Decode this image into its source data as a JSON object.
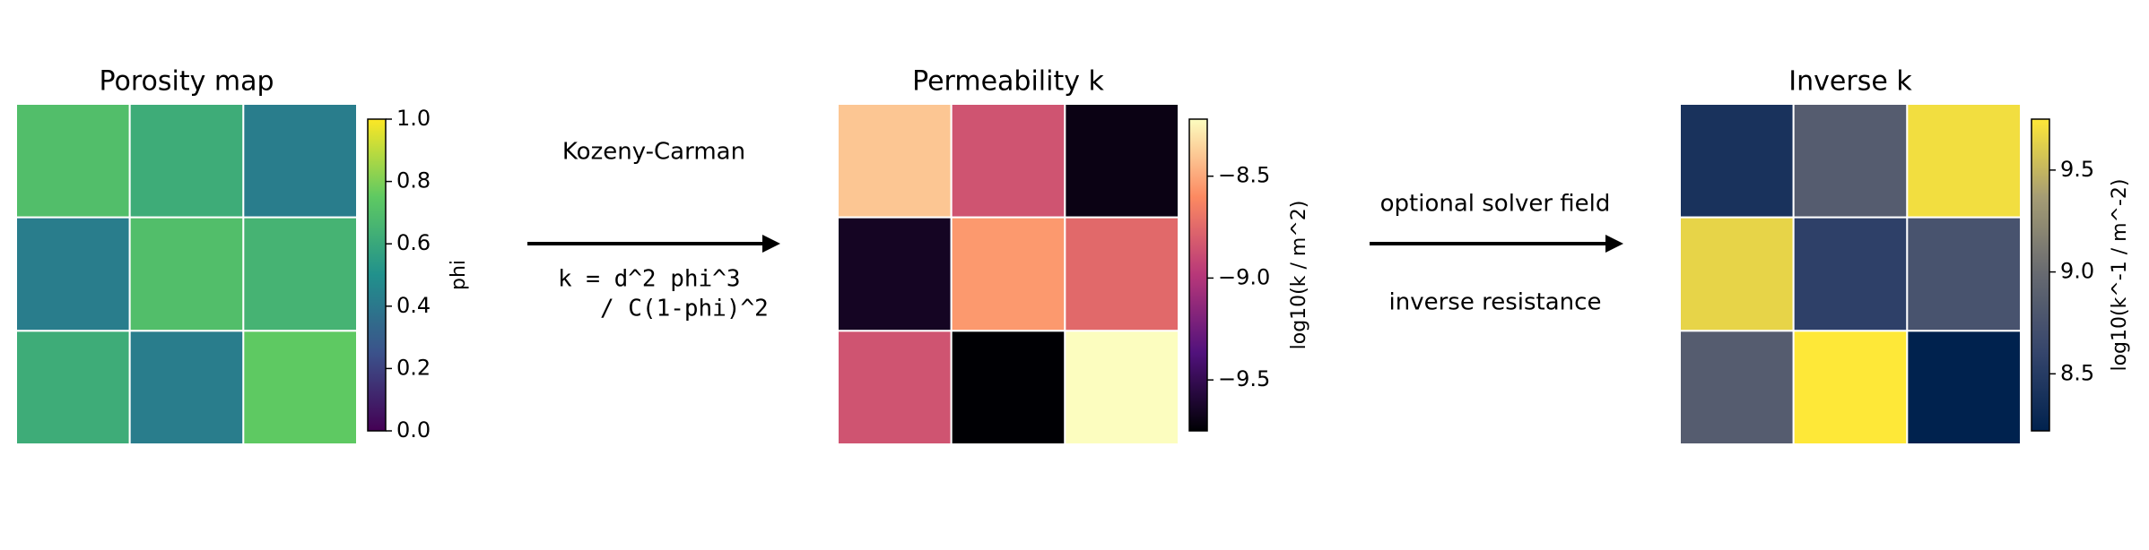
{
  "chart_data": [
    {
      "type": "heatmap",
      "title": "Porosity map",
      "cmap": "viridis",
      "values": [
        [
          0.7,
          0.62,
          0.42
        ],
        [
          0.42,
          0.7,
          0.65
        ],
        [
          0.62,
          0.42,
          0.75
        ]
      ],
      "clim": [
        0,
        1
      ],
      "cticks": [
        {
          "value": 0,
          "label": "0.0"
        },
        0.2,
        0.4,
        0.6,
        0.8,
        {
          "value": 1,
          "label": "1.0"
        }
      ],
      "colorbar_label": "phi"
    },
    {
      "type": "heatmap",
      "title": "Permeability k",
      "cmap": "magma",
      "values": [
        [
          -8.4,
          -8.85,
          -9.7
        ],
        [
          -9.65,
          -8.55,
          -8.75
        ],
        [
          -8.85,
          -9.75,
          -8.22
        ]
      ],
      "clim": [
        -9.75,
        -8.22
      ],
      "cticks": [
        {
          "value": -9.5,
          "label": "−9.5"
        },
        {
          "value": -9.0,
          "label": "−9.0"
        },
        {
          "value": -8.5,
          "label": "−8.5"
        }
      ],
      "colorbar_label": "log10(k / m^2)"
    },
    {
      "type": "heatmap",
      "title": "Inverse k",
      "cmap": "cividis",
      "values": [
        [
          8.4,
          8.85,
          9.7
        ],
        [
          9.65,
          8.55,
          8.75
        ],
        [
          8.85,
          9.75,
          8.22
        ]
      ],
      "clim": [
        8.22,
        9.75
      ],
      "cticks": [
        8.5,
        {
          "value": 9,
          "label": "9.0"
        },
        9.5
      ],
      "colorbar_label": "log10(k^-1 / m^-2)"
    }
  ],
  "annotations": [
    {
      "above": "Kozeny-Carman",
      "below": [
        "k = d^2 phi^3",
        "   / C(1-phi)^2"
      ]
    },
    {
      "above": "optional solver field",
      "below": [
        "inverse resistance"
      ]
    }
  ]
}
